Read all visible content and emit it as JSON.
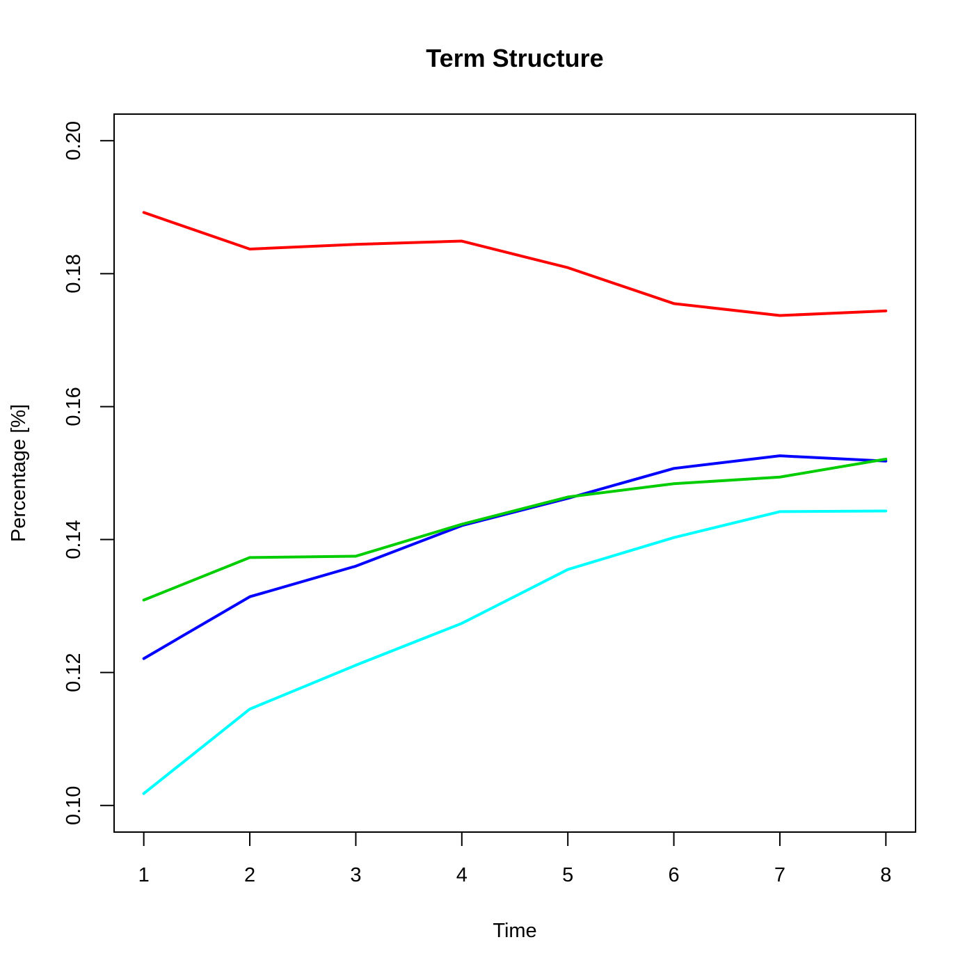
{
  "chart_data": {
    "type": "line",
    "title": "Term Structure",
    "xlabel": "Time",
    "ylabel": "Percentage [%]",
    "x": [
      1,
      2,
      3,
      4,
      5,
      6,
      7,
      8
    ],
    "xticks": [
      "1",
      "2",
      "3",
      "4",
      "5",
      "6",
      "7",
      "8"
    ],
    "yticks": [
      "0.10",
      "0.12",
      "0.14",
      "0.16",
      "0.18",
      "0.20"
    ],
    "xlim": [
      0.72,
      8.28
    ],
    "ylim": [
      0.096,
      0.204
    ],
    "grid": false,
    "series": [
      {
        "color": "#ff0000",
        "values": [
          0.1892,
          0.1837,
          0.1844,
          0.1849,
          0.1809,
          0.1755,
          0.1737,
          0.1744
        ]
      },
      {
        "color": "#0000ff",
        "values": [
          0.1221,
          0.1314,
          0.136,
          0.1421,
          0.1462,
          0.1507,
          0.1526,
          0.1518
        ]
      },
      {
        "color": "#00cd00",
        "values": [
          0.1309,
          0.1373,
          0.1375,
          0.1423,
          0.1464,
          0.1484,
          0.1494,
          0.1521
        ]
      },
      {
        "color": "#00ffff",
        "values": [
          0.1018,
          0.1145,
          0.1211,
          0.1274,
          0.1355,
          0.1403,
          0.1442,
          0.1443
        ]
      }
    ]
  }
}
